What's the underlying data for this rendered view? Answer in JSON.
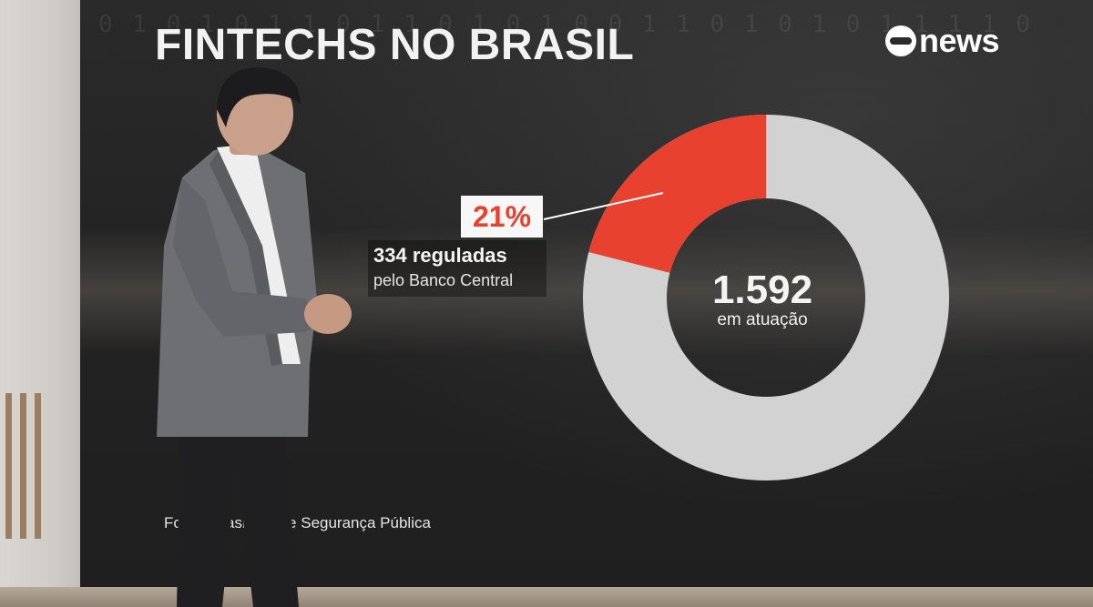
{
  "graphic": {
    "title": "FINTECHS NO BRASIL",
    "logo": "news",
    "binary_backdrop": "0 1 0 1 0 1   1 0 1 1 0 1 0 1 0 0 1 1   0 1 0 1 0 1 1 1 1 0",
    "colors": {
      "highlight": "#e8412f",
      "ring": "#d2d2d2",
      "background": "#242424"
    },
    "donut": {
      "highlight_percent": 21,
      "percent_label": "21%",
      "center_value": "1.592",
      "center_label": "em atuação"
    },
    "callout": {
      "strong": "334 reguladas",
      "sub": "pelo Banco Central"
    },
    "source": "Fon… Brasileiro de Segurança Pública"
  }
}
